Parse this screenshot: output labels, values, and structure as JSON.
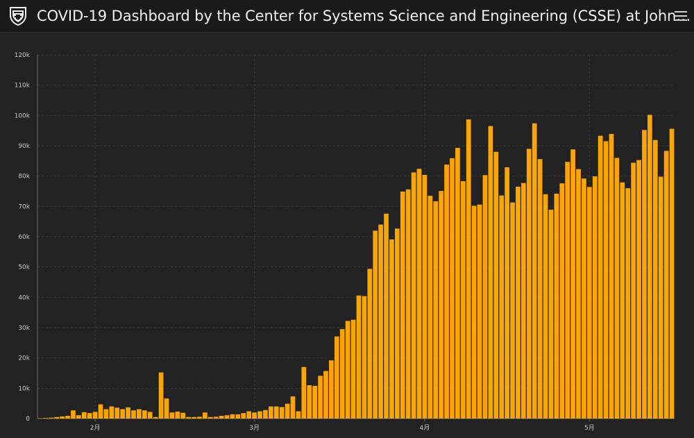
{
  "header": {
    "title": "COVID-19 Dashboard by the Center for Systems Science and Engineering (CSSE) at John…",
    "logo_icon": "university-shield-icon",
    "menu_icon": "hamburger-menu-icon"
  },
  "colors": {
    "bar": "#ffa500",
    "background": "#222222",
    "header_bg": "#1a1a1a",
    "gridline": "#3a3a3a",
    "text": "#f2f2f2"
  },
  "chart_data": {
    "type": "bar",
    "title": "",
    "xlabel": "",
    "ylabel": "",
    "ylim": [
      0,
      120000
    ],
    "yticks": [
      {
        "value": 0,
        "label": "0"
      },
      {
        "value": 10000,
        "label": "10k"
      },
      {
        "value": 20000,
        "label": "20k"
      },
      {
        "value": 30000,
        "label": "30k"
      },
      {
        "value": 40000,
        "label": "40k"
      },
      {
        "value": 50000,
        "label": "50k"
      },
      {
        "value": 60000,
        "label": "60k"
      },
      {
        "value": 70000,
        "label": "70k"
      },
      {
        "value": 80000,
        "label": "80k"
      },
      {
        "value": 90000,
        "label": "90k"
      },
      {
        "value": 100000,
        "label": "100k"
      },
      {
        "value": 110000,
        "label": "110k"
      },
      {
        "value": 120000,
        "label": "120k"
      }
    ],
    "xticks": [
      {
        "index": 10,
        "label": "2月"
      },
      {
        "index": 39,
        "label": "3月"
      },
      {
        "index": 70,
        "label": "4月"
      },
      {
        "index": 100,
        "label": "5月"
      }
    ],
    "grid": true,
    "legend": "none",
    "values": [
      100,
      200,
      300,
      500,
      700,
      900,
      2700,
      1100,
      2100,
      1800,
      2200,
      4700,
      3100,
      4000,
      3600,
      3100,
      3700,
      2700,
      3100,
      2700,
      2200,
      500,
      15200,
      6600,
      2000,
      2300,
      1900,
      500,
      500,
      600,
      2000,
      500,
      600,
      900,
      1100,
      1400,
      1400,
      1800,
      2400,
      2000,
      2400,
      2800,
      4000,
      4000,
      3800,
      4900,
      7300,
      2400,
      17000,
      11000,
      10800,
      14100,
      15700,
      19200,
      27100,
      29500,
      32200,
      32600,
      40600,
      40400,
      49400,
      62000,
      64000,
      67600,
      59100,
      62700,
      74900,
      75600,
      81200,
      82400,
      80400,
      73500,
      71700,
      75100,
      83800,
      85900,
      89300,
      78300,
      98700,
      70200,
      70600,
      80300,
      96500,
      88000,
      73600,
      82900,
      71300,
      76500,
      77700,
      89000,
      97400,
      85600,
      74000,
      68900,
      74200,
      77600,
      84700,
      88800,
      82300,
      79200,
      76400,
      79900,
      93300,
      91500,
      93900,
      86000,
      77900,
      76000,
      84400,
      85300,
      95200,
      100200,
      91900,
      79800,
      88300,
      95600
    ]
  }
}
